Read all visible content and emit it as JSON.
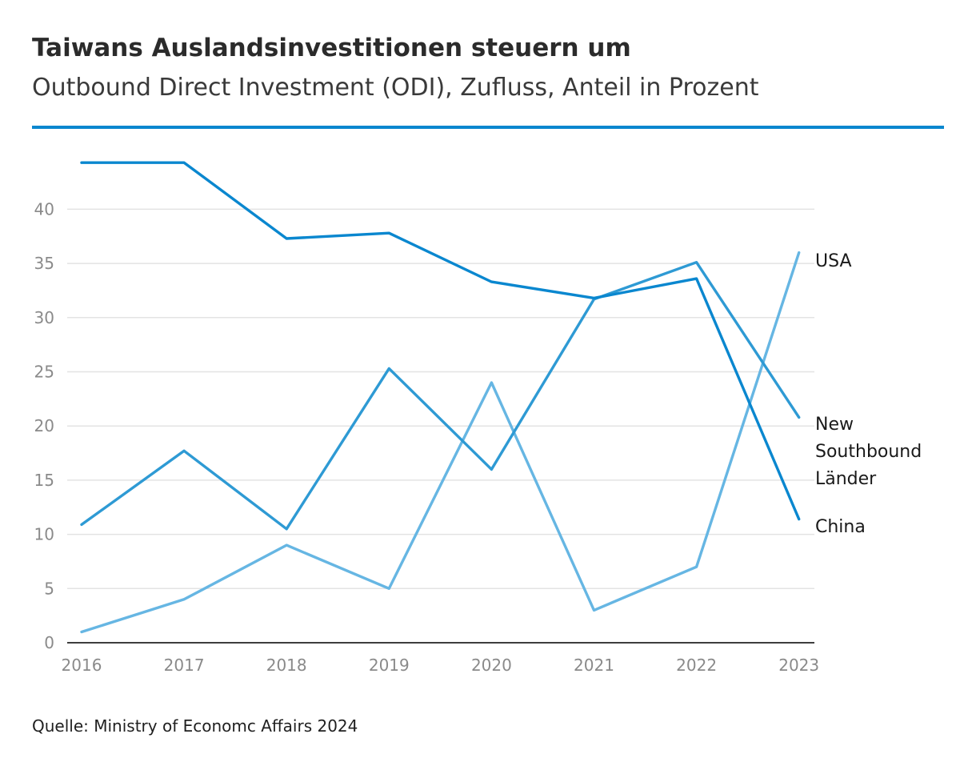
{
  "title": "Taiwans Auslandsinvestitionen steuern um",
  "subtitle": "Outbound Direct Investment (ODI), Zufluss, Anteil in Prozent",
  "source": "Quelle: Ministry of Economc Affairs 2024",
  "colors": {
    "accent_rule": "#0a87cf",
    "China": "#0a87cf",
    "New Southbound Länder": "#2e9ad4",
    "USA": "#66b6e3",
    "gridline": "#e3e3e3",
    "axis": "#222222"
  },
  "chart_data": {
    "type": "line",
    "x": [
      "2016",
      "2017",
      "2018",
      "2019",
      "2020",
      "2021",
      "2022",
      "2023"
    ],
    "series": [
      {
        "name": "China",
        "values": [
          44.3,
          44.3,
          37.3,
          37.8,
          33.3,
          31.8,
          33.6,
          11.4
        ]
      },
      {
        "name": "New Southbound Länder",
        "values": [
          10.9,
          17.7,
          10.5,
          25.3,
          16.0,
          31.7,
          35.1,
          20.8
        ]
      },
      {
        "name": "USA",
        "values": [
          1.0,
          4.0,
          9.0,
          5.0,
          24.0,
          3.0,
          7.0,
          36.0
        ]
      }
    ],
    "series_labels": [
      {
        "series": "USA",
        "lines": [
          "USA"
        ]
      },
      {
        "series": "New Southbound Länder",
        "lines": [
          "New",
          "Southbound",
          "Länder"
        ]
      },
      {
        "series": "China",
        "lines": [
          "China"
        ]
      }
    ],
    "yticks": [
      0,
      5,
      10,
      15,
      20,
      25,
      30,
      35,
      40
    ],
    "ylim": [
      0,
      45
    ],
    "xlabel": "",
    "ylabel": "",
    "grid": true,
    "legend": "direct labels at right end of lines"
  }
}
